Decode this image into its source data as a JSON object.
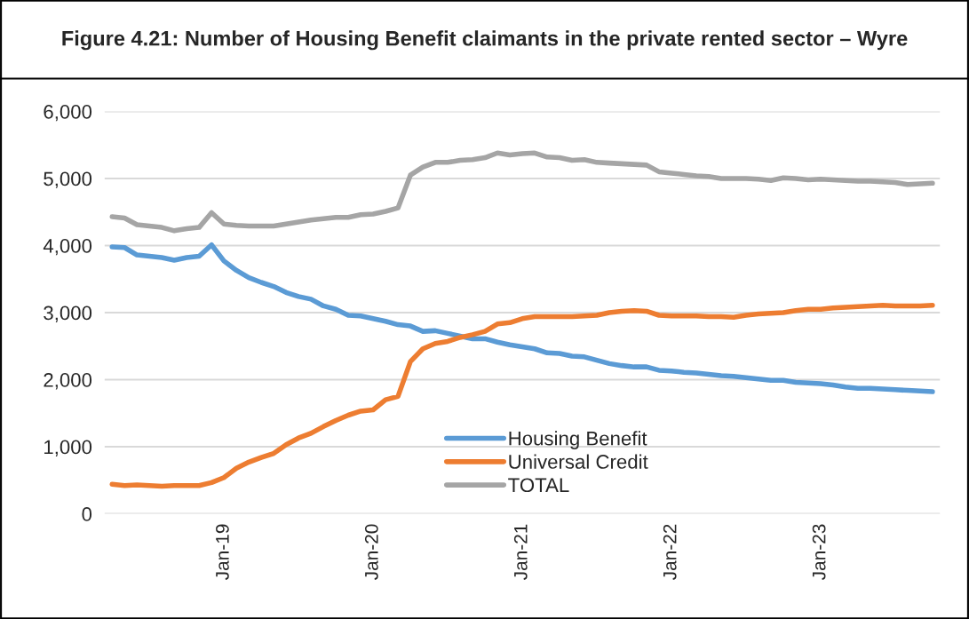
{
  "chart_data": {
    "type": "line",
    "title": "Figure 4.21: Number of Housing Benefit claimants in the private rented sector – Wyre",
    "categories": [
      null,
      null,
      null,
      null,
      null,
      null,
      null,
      null,
      null,
      "Jan-19",
      null,
      null,
      null,
      null,
      null,
      null,
      null,
      null,
      null,
      null,
      null,
      "Jan-20",
      null,
      null,
      null,
      null,
      null,
      null,
      null,
      null,
      null,
      null,
      null,
      "Jan-21",
      null,
      null,
      null,
      null,
      null,
      null,
      null,
      null,
      null,
      null,
      null,
      "Jan-22",
      null,
      null,
      null,
      null,
      null,
      null,
      null,
      null,
      null,
      null,
      null,
      "Jan-23",
      null,
      null,
      null,
      null,
      null,
      null,
      null,
      null,
      null
    ],
    "series": [
      {
        "name": "Housing Benefit",
        "color": "#5b9bd5",
        "values": [
          3980,
          3970,
          3860,
          3840,
          3820,
          3780,
          3820,
          3840,
          4010,
          3770,
          3630,
          3520,
          3450,
          3390,
          3300,
          3240,
          3200,
          3100,
          3050,
          2960,
          2950,
          2910,
          2870,
          2820,
          2800,
          2720,
          2730,
          2690,
          2650,
          2610,
          2610,
          2560,
          2520,
          2490,
          2460,
          2400,
          2390,
          2350,
          2340,
          2290,
          2240,
          2210,
          2190,
          2190,
          2140,
          2130,
          2110,
          2100,
          2080,
          2060,
          2050,
          2030,
          2010,
          1990,
          1990,
          1960,
          1950,
          1940,
          1920,
          1890,
          1870,
          1870,
          1860,
          1850,
          1840,
          1830,
          1820
        ]
      },
      {
        "name": "Universal Credit",
        "color": "#ed7d31",
        "values": [
          440,
          420,
          430,
          420,
          410,
          420,
          420,
          420,
          465,
          540,
          680,
          770,
          840,
          900,
          1030,
          1130,
          1200,
          1300,
          1390,
          1470,
          1530,
          1550,
          1700,
          1750,
          2270,
          2460,
          2540,
          2570,
          2630,
          2670,
          2720,
          2830,
          2850,
          2910,
          2940,
          2940,
          2940,
          2940,
          2950,
          2960,
          3000,
          3020,
          3030,
          3020,
          2960,
          2950,
          2950,
          2950,
          2940,
          2940,
          2930,
          2960,
          2980,
          2990,
          3000,
          3030,
          3050,
          3050,
          3070,
          3080,
          3090,
          3100,
          3110,
          3100,
          3100,
          3100,
          3110
        ]
      },
      {
        "name": "TOTAL",
        "color": "#a5a5a5",
        "values": [
          4430,
          4410,
          4310,
          4290,
          4270,
          4220,
          4250,
          4270,
          4490,
          4320,
          4300,
          4290,
          4290,
          4290,
          4320,
          4350,
          4380,
          4400,
          4420,
          4420,
          4460,
          4470,
          4510,
          4560,
          5050,
          5170,
          5240,
          5240,
          5270,
          5280,
          5310,
          5380,
          5350,
          5370,
          5380,
          5320,
          5310,
          5270,
          5280,
          5240,
          5230,
          5220,
          5210,
          5200,
          5100,
          5080,
          5060,
          5040,
          5030,
          5000,
          5000,
          5000,
          4990,
          4970,
          5010,
          5000,
          4980,
          4990,
          4980,
          4970,
          4960,
          4960,
          4950,
          4940,
          4910,
          4920,
          4930
        ]
      }
    ],
    "ylim": [
      0,
      6000
    ],
    "yticks": [
      {
        "value": 0,
        "label": "0"
      },
      {
        "value": 1000,
        "label": "1,000"
      },
      {
        "value": 2000,
        "label": "2,000"
      },
      {
        "value": 3000,
        "label": "3,000"
      },
      {
        "value": 4000,
        "label": "4,000"
      },
      {
        "value": 5000,
        "label": "5,000"
      },
      {
        "value": 6000,
        "label": "6,000"
      }
    ],
    "grid": "y",
    "legend": "bottom",
    "marker": "none",
    "line_style": "solid"
  }
}
